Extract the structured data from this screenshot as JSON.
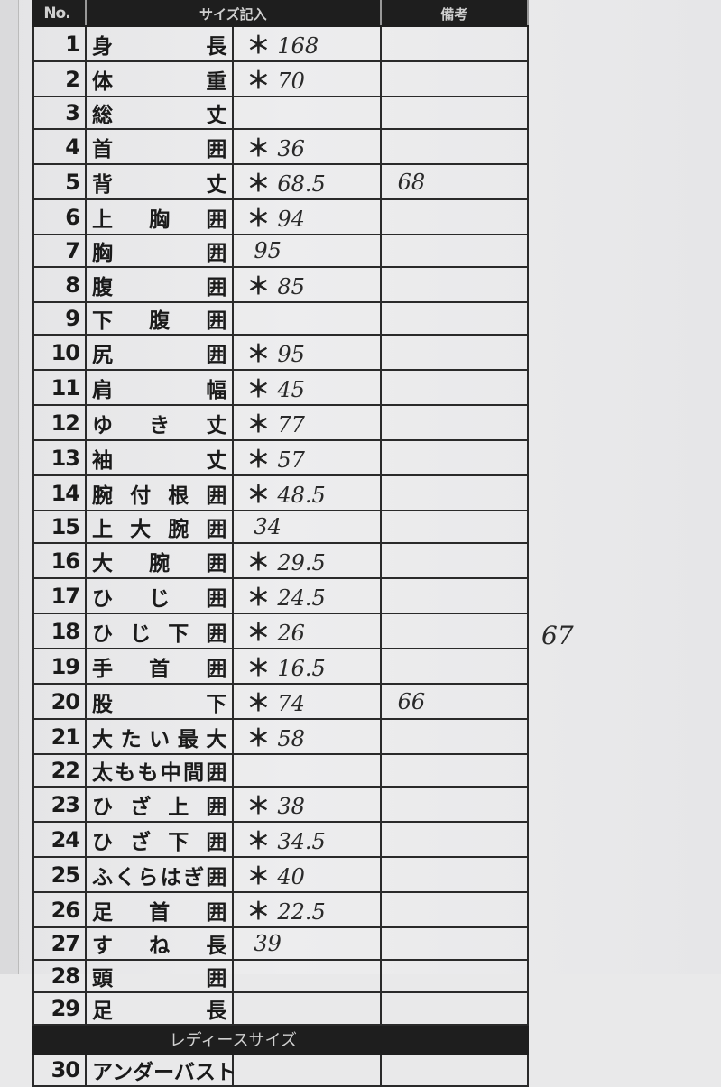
{
  "header": {
    "no": "No.",
    "size_entry": "サイズ記入",
    "remarks": "備考"
  },
  "rows": [
    {
      "no": "1",
      "label": "身長",
      "asterisk": "＊",
      "value": "168",
      "note": ""
    },
    {
      "no": "2",
      "label": "体重",
      "asterisk": "＊",
      "value": "70",
      "note": ""
    },
    {
      "no": "3",
      "label": "総丈",
      "asterisk": "",
      "value": "",
      "note": ""
    },
    {
      "no": "4",
      "label": "首囲",
      "asterisk": "＊",
      "value": "36",
      "note": ""
    },
    {
      "no": "5",
      "label": "背丈",
      "asterisk": "＊",
      "value": "68.5",
      "note": "68"
    },
    {
      "no": "6",
      "label": "上胸囲",
      "asterisk": "＊",
      "value": "94",
      "note": ""
    },
    {
      "no": "7",
      "label": "胸囲",
      "asterisk": "",
      "value": "95",
      "note": ""
    },
    {
      "no": "8",
      "label": "腹囲",
      "asterisk": "＊",
      "value": "85",
      "note": ""
    },
    {
      "no": "9",
      "label": "下腹囲",
      "asterisk": "",
      "value": "",
      "note": ""
    },
    {
      "no": "10",
      "label": "尻囲",
      "asterisk": "＊",
      "value": "95",
      "note": ""
    },
    {
      "no": "11",
      "label": "肩幅",
      "asterisk": "＊",
      "value": "45",
      "note": ""
    },
    {
      "no": "12",
      "label": "ゆき丈",
      "asterisk": "＊",
      "value": "77",
      "note": ""
    },
    {
      "no": "13",
      "label": "袖丈",
      "asterisk": "＊",
      "value": "57",
      "note": ""
    },
    {
      "no": "14",
      "label": "腕付根囲",
      "asterisk": "＊",
      "value": "48.5",
      "note": ""
    },
    {
      "no": "15",
      "label": "上大腕囲",
      "asterisk": "",
      "value": "34",
      "note": ""
    },
    {
      "no": "16",
      "label": "大腕囲",
      "asterisk": "＊",
      "value": "29.5",
      "note": ""
    },
    {
      "no": "17",
      "label": "ひじ囲",
      "asterisk": "＊",
      "value": "24.5",
      "note": ""
    },
    {
      "no": "18",
      "label": "ひじ下囲",
      "asterisk": "＊",
      "value": "26",
      "note": ""
    },
    {
      "no": "19",
      "label": "手首囲",
      "asterisk": "＊",
      "value": "16.5",
      "note": ""
    },
    {
      "no": "20",
      "label": "股下",
      "asterisk": "＊",
      "value": "74",
      "note": "66"
    },
    {
      "no": "21",
      "label": "大たい最大",
      "asterisk": "＊",
      "value": "58",
      "note": ""
    },
    {
      "no": "22",
      "label": "太もも中間囲",
      "asterisk": "",
      "value": "",
      "note": ""
    },
    {
      "no": "23",
      "label": "ひざ上囲",
      "asterisk": "＊",
      "value": "38",
      "note": ""
    },
    {
      "no": "24",
      "label": "ひざ下囲",
      "asterisk": "＊",
      "value": "34.5",
      "note": ""
    },
    {
      "no": "25",
      "label": "ふくらはぎ囲",
      "asterisk": "＊",
      "value": "40",
      "note": ""
    },
    {
      "no": "26",
      "label": "足首囲",
      "asterisk": "＊",
      "value": "22.5",
      "note": ""
    },
    {
      "no": "27",
      "label": "すね長",
      "asterisk": "",
      "value": "39",
      "note": ""
    },
    {
      "no": "28",
      "label": "頭囲",
      "asterisk": "",
      "value": "",
      "note": ""
    },
    {
      "no": "29",
      "label": "足長",
      "asterisk": "",
      "value": "",
      "note": ""
    }
  ],
  "section": {
    "title": "レディースサイズ"
  },
  "row30": {
    "no": "30",
    "label": "アンダーバスト"
  },
  "outside_note": "67"
}
